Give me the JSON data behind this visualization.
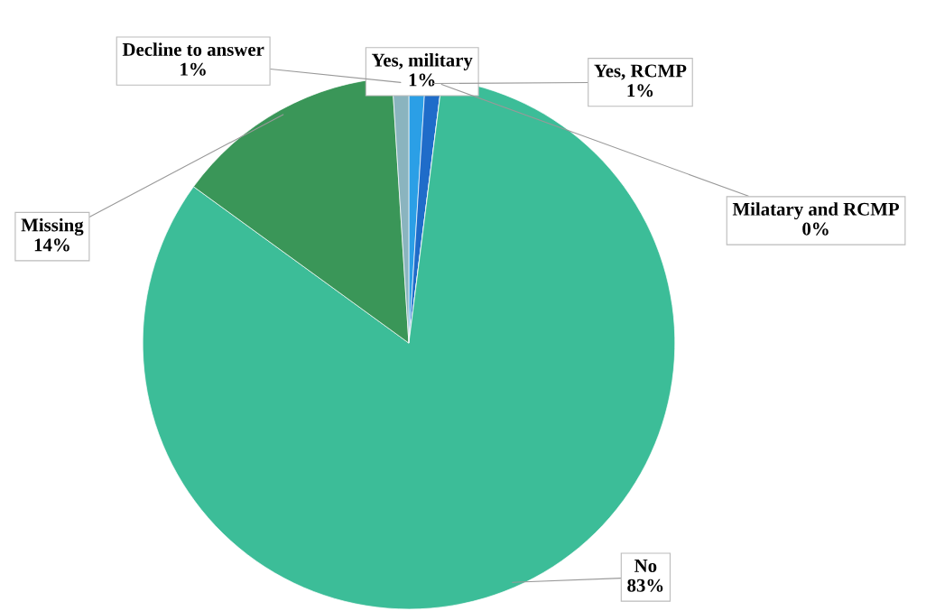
{
  "chart_data": {
    "type": "pie",
    "categories": [
      "Yes, military",
      "Yes, RCMP",
      "Milatary and RCMP",
      "No",
      "Missing",
      "Decline to answer"
    ],
    "values": [
      1,
      1,
      0,
      83,
      14,
      1
    ],
    "colors": [
      "#2b9fe6",
      "#1f6cc9",
      "#3a86c8",
      "#3cbd98",
      "#3a9658",
      "#8ab4bf"
    ],
    "value_labels": [
      "1%",
      "1%",
      "0%",
      "83%",
      "14%",
      "1%"
    ]
  }
}
